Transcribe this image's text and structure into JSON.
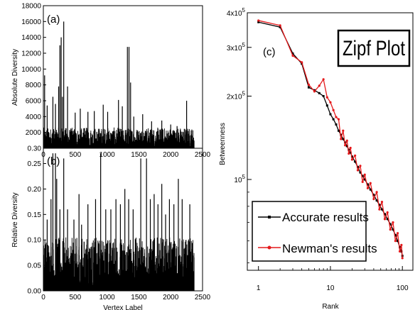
{
  "chart_data": [
    {
      "panel": "(a)",
      "type": "bar",
      "xlabel": "Vertex Label",
      "ylabel": "Absolute Diversity",
      "xlim": [
        0,
        2500
      ],
      "ylim": [
        0,
        18000
      ],
      "xticks": [
        "0",
        "500",
        "1000",
        "1500",
        "2000",
        "2500"
      ],
      "yticks": [
        "0.30",
        "2000",
        "4000",
        "6000",
        "8000",
        "10000",
        "12000",
        "14000",
        "16000",
        "18000"
      ],
      "n_vertices": 2370,
      "peaks": [
        {
          "x": 20,
          "y": 9200
        },
        {
          "x": 60,
          "y": 5400
        },
        {
          "x": 150,
          "y": 6500
        },
        {
          "x": 190,
          "y": 5600
        },
        {
          "x": 240,
          "y": 7800
        },
        {
          "x": 260,
          "y": 13000
        },
        {
          "x": 280,
          "y": 14000
        },
        {
          "x": 300,
          "y": 6500
        },
        {
          "x": 320,
          "y": 16000
        },
        {
          "x": 380,
          "y": 7800
        },
        {
          "x": 500,
          "y": 4500
        },
        {
          "x": 580,
          "y": 5000
        },
        {
          "x": 700,
          "y": 4600
        },
        {
          "x": 800,
          "y": 4700
        },
        {
          "x": 940,
          "y": 5500
        },
        {
          "x": 1010,
          "y": 4600
        },
        {
          "x": 1180,
          "y": 6100
        },
        {
          "x": 1240,
          "y": 5300
        },
        {
          "x": 1320,
          "y": 12800
        },
        {
          "x": 1345,
          "y": 12800
        },
        {
          "x": 1370,
          "y": 8300
        },
        {
          "x": 1420,
          "y": 4000
        },
        {
          "x": 1560,
          "y": 4300
        },
        {
          "x": 1700,
          "y": 3400
        },
        {
          "x": 1860,
          "y": 3500
        },
        {
          "x": 2000,
          "y": 3000
        },
        {
          "x": 2100,
          "y": 2800
        },
        {
          "x": 2250,
          "y": 6000
        }
      ],
      "baseline_level": 1500
    },
    {
      "panel": "(b)",
      "type": "bar",
      "xlabel": "Vertex Label",
      "ylabel": "Relative Diversity",
      "xlim": [
        0,
        2500
      ],
      "ylim": [
        0,
        0.28
      ],
      "xticks": [
        "0",
        "500",
        "1000",
        "1500",
        "2000",
        "2500"
      ],
      "yticks": [
        "0.00",
        "0.05",
        "0.10",
        "0.15",
        "0.20",
        "0.25"
      ],
      "n_vertices": 2370,
      "peaks": [
        {
          "x": 60,
          "y": 0.14
        },
        {
          "x": 120,
          "y": 0.18
        },
        {
          "x": 150,
          "y": 0.27
        },
        {
          "x": 190,
          "y": 0.27
        },
        {
          "x": 210,
          "y": 0.22
        },
        {
          "x": 260,
          "y": 0.16
        },
        {
          "x": 320,
          "y": 0.26
        },
        {
          "x": 380,
          "y": 0.16
        },
        {
          "x": 480,
          "y": 0.14
        },
        {
          "x": 560,
          "y": 0.19
        },
        {
          "x": 600,
          "y": 0.13
        },
        {
          "x": 700,
          "y": 0.17
        },
        {
          "x": 820,
          "y": 0.18
        },
        {
          "x": 900,
          "y": 0.27
        },
        {
          "x": 980,
          "y": 0.16
        },
        {
          "x": 1060,
          "y": 0.16
        },
        {
          "x": 1140,
          "y": 0.18
        },
        {
          "x": 1210,
          "y": 0.17
        },
        {
          "x": 1280,
          "y": 0.2
        },
        {
          "x": 1340,
          "y": 0.18
        },
        {
          "x": 1410,
          "y": 0.16
        },
        {
          "x": 1530,
          "y": 0.26
        },
        {
          "x": 1620,
          "y": 0.26
        },
        {
          "x": 1680,
          "y": 0.18
        },
        {
          "x": 1740,
          "y": 0.19
        },
        {
          "x": 1800,
          "y": 0.17
        },
        {
          "x": 1860,
          "y": 0.21
        },
        {
          "x": 1920,
          "y": 0.15
        },
        {
          "x": 1980,
          "y": 0.18
        },
        {
          "x": 2050,
          "y": 0.17
        },
        {
          "x": 2120,
          "y": 0.22
        },
        {
          "x": 2180,
          "y": 0.18
        },
        {
          "x": 2240,
          "y": 0.1
        },
        {
          "x": 2300,
          "y": 0.17
        }
      ],
      "baseline_level": 0.06
    },
    {
      "panel": "(c)",
      "type": "line",
      "title": "Zipf Plot",
      "xlabel": "Rank",
      "ylabel": "Betweenness",
      "xscale": "log",
      "yscale": "log",
      "xlim": [
        0.7,
        140
      ],
      "ylim": [
        47000,
        400000
      ],
      "xticks": [
        {
          "v": 1,
          "label": "1"
        },
        {
          "v": 10,
          "label": "10"
        },
        {
          "v": 100,
          "label": "100"
        }
      ],
      "yticks": [
        {
          "v": 100000,
          "base": "10",
          "exp": "5"
        },
        {
          "v": 200000,
          "base": "2x10",
          "exp": "5"
        },
        {
          "v": 300000,
          "base": "3x10",
          "exp": "5"
        },
        {
          "v": 400000,
          "base": "4x10",
          "exp": "5"
        }
      ],
      "legend": {
        "placement": "bottom-left"
      },
      "series": [
        {
          "name": "Accurate results",
          "color": "#000000",
          "points": [
            [
              1,
              370000
            ],
            [
              2,
              355000
            ],
            [
              3,
              285000
            ],
            [
              4,
              262000
            ],
            [
              5,
              215000
            ],
            [
              6,
              210000
            ],
            [
              7,
              205000
            ],
            [
              8,
              200000
            ],
            [
              9,
              185000
            ],
            [
              10,
              172000
            ],
            [
              11,
              165000
            ],
            [
              12,
              158000
            ],
            [
              13,
              150000
            ],
            [
              14,
              145000
            ],
            [
              15,
              140000
            ],
            [
              16,
              136000
            ],
            [
              17,
              132000
            ],
            [
              18,
              128000
            ],
            [
              19,
              125000
            ],
            [
              20,
              121000
            ],
            [
              22,
              116000
            ],
            [
              24,
              111000
            ],
            [
              26,
              106000
            ],
            [
              28,
              103000
            ],
            [
              30,
              100000
            ],
            [
              33,
              96000
            ],
            [
              36,
              92000
            ],
            [
              40,
              88000
            ],
            [
              44,
              84000
            ],
            [
              48,
              81000
            ],
            [
              52,
              78000
            ],
            [
              57,
              75000
            ],
            [
              62,
              72000
            ],
            [
              68,
              69000
            ],
            [
              74,
              66000
            ],
            [
              80,
              63000
            ],
            [
              86,
              60000
            ],
            [
              92,
              57000
            ],
            [
              97,
              55000
            ],
            [
              100,
              53000
            ]
          ]
        },
        {
          "name": "Newman's results",
          "color": "#e41a1c",
          "points": [
            [
              1,
              375000
            ],
            [
              2,
              360000
            ],
            [
              3,
              280000
            ],
            [
              4,
              265000
            ],
            [
              5,
              220000
            ],
            [
              6,
              208000
            ],
            [
              7,
              218000
            ],
            [
              8,
              230000
            ],
            [
              9,
              198000
            ],
            [
              10,
              190000
            ],
            [
              11,
              178000
            ],
            [
              12,
              168000
            ],
            [
              13,
              165000
            ],
            [
              14,
              140000
            ],
            [
              15,
              150000
            ],
            [
              16,
              133000
            ],
            [
              17,
              138000
            ],
            [
              18,
              124000
            ],
            [
              19,
              130000
            ],
            [
              20,
              118000
            ],
            [
              22,
              122000
            ],
            [
              24,
              108000
            ],
            [
              26,
              112000
            ],
            [
              28,
              98000
            ],
            [
              30,
              104000
            ],
            [
              33,
              93000
            ],
            [
              36,
              97000
            ],
            [
              40,
              85000
            ],
            [
              44,
              90000
            ],
            [
              48,
              78000
            ],
            [
              52,
              83000
            ],
            [
              57,
              72000
            ],
            [
              62,
              76000
            ],
            [
              68,
              66000
            ],
            [
              74,
              70000
            ],
            [
              80,
              60000
            ],
            [
              86,
              64000
            ],
            [
              92,
              55000
            ],
            [
              97,
              58000
            ],
            [
              100,
              52000
            ]
          ]
        }
      ]
    }
  ]
}
